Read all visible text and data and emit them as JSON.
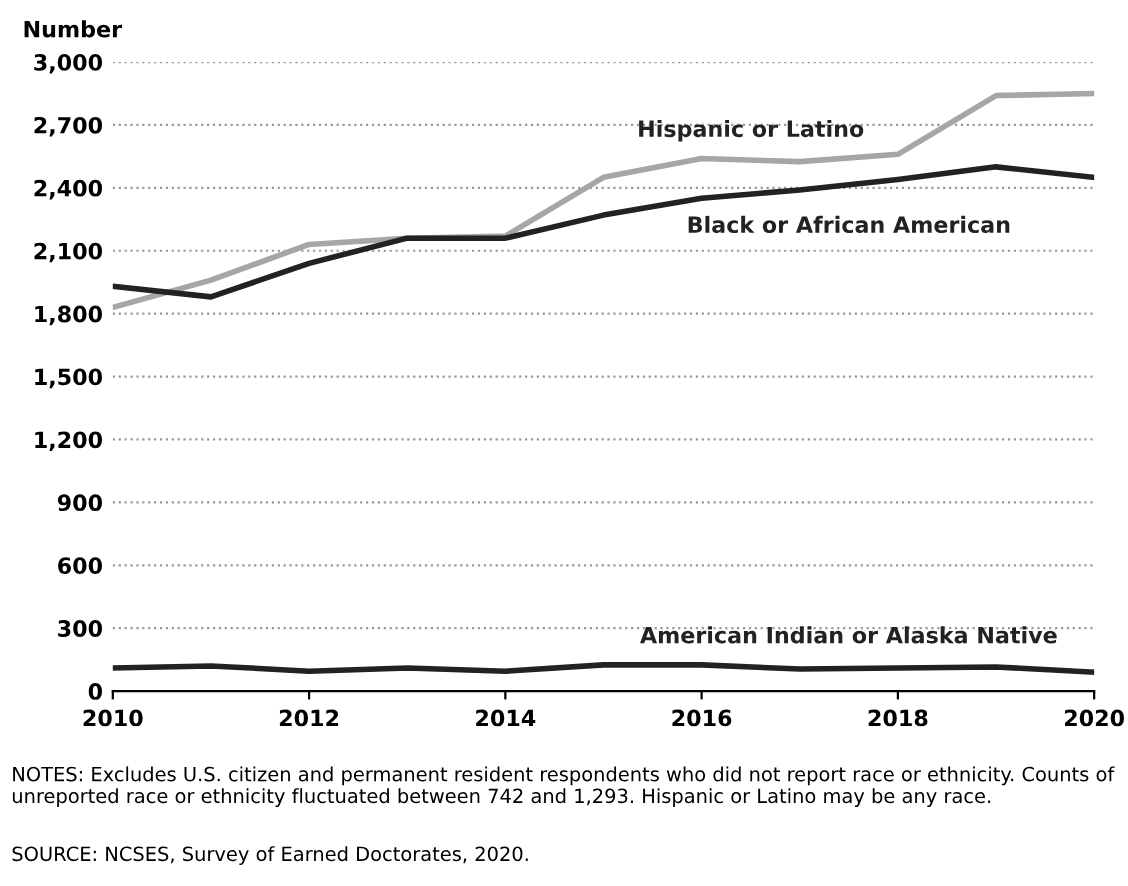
{
  "chart_data": {
    "type": "line",
    "ylabel": "Number",
    "x": [
      2010,
      2011,
      2012,
      2013,
      2014,
      2015,
      2016,
      2017,
      2018,
      2019,
      2020
    ],
    "series": [
      {
        "name": "Hispanic or Latino",
        "color": "#a6a6a6",
        "values": [
          1830,
          1960,
          2130,
          2160,
          2170,
          2450,
          2540,
          2525,
          2560,
          2840,
          2850
        ]
      },
      {
        "name": "Black or African American",
        "color": "#222222",
        "values": [
          1930,
          1880,
          2040,
          2160,
          2160,
          2270,
          2350,
          2390,
          2440,
          2500,
          2450
        ]
      },
      {
        "name": "American Indian or Alaska Native",
        "color": "#222222",
        "values": [
          110,
          120,
          95,
          110,
          95,
          125,
          125,
          105,
          110,
          115,
          90
        ]
      }
    ],
    "xlim": [
      2010,
      2020
    ],
    "xticks": [
      2010,
      2012,
      2014,
      2016,
      2018,
      2020
    ],
    "ylim": [
      0,
      3000
    ],
    "yticks": [
      {
        "value": 0,
        "label": "0"
      },
      {
        "value": 300,
        "label": "300"
      },
      {
        "value": 600,
        "label": "600"
      },
      {
        "value": 900,
        "label": "900"
      },
      {
        "value": 1200,
        "label": "1,200"
      },
      {
        "value": 1500,
        "label": "1,500"
      },
      {
        "value": 1800,
        "label": "1,800"
      },
      {
        "value": 2100,
        "label": "2,100"
      },
      {
        "value": 2400,
        "label": "2,400"
      },
      {
        "value": 2700,
        "label": "2,700"
      },
      {
        "value": 3000,
        "label": "3,000"
      }
    ],
    "grid": "y",
    "line_style": "solid",
    "marker": "none",
    "annotations": [
      "NOTES: Excludes U.S. citizen and permanent resident respondents who did not report race or ethnicity. Counts of unreported race or ethnicity fluctuated between 742 and 1,293. Hispanic or Latino may be any race.",
      "SOURCE: NCSES, Survey of Earned Doctorates, 2020."
    ]
  }
}
